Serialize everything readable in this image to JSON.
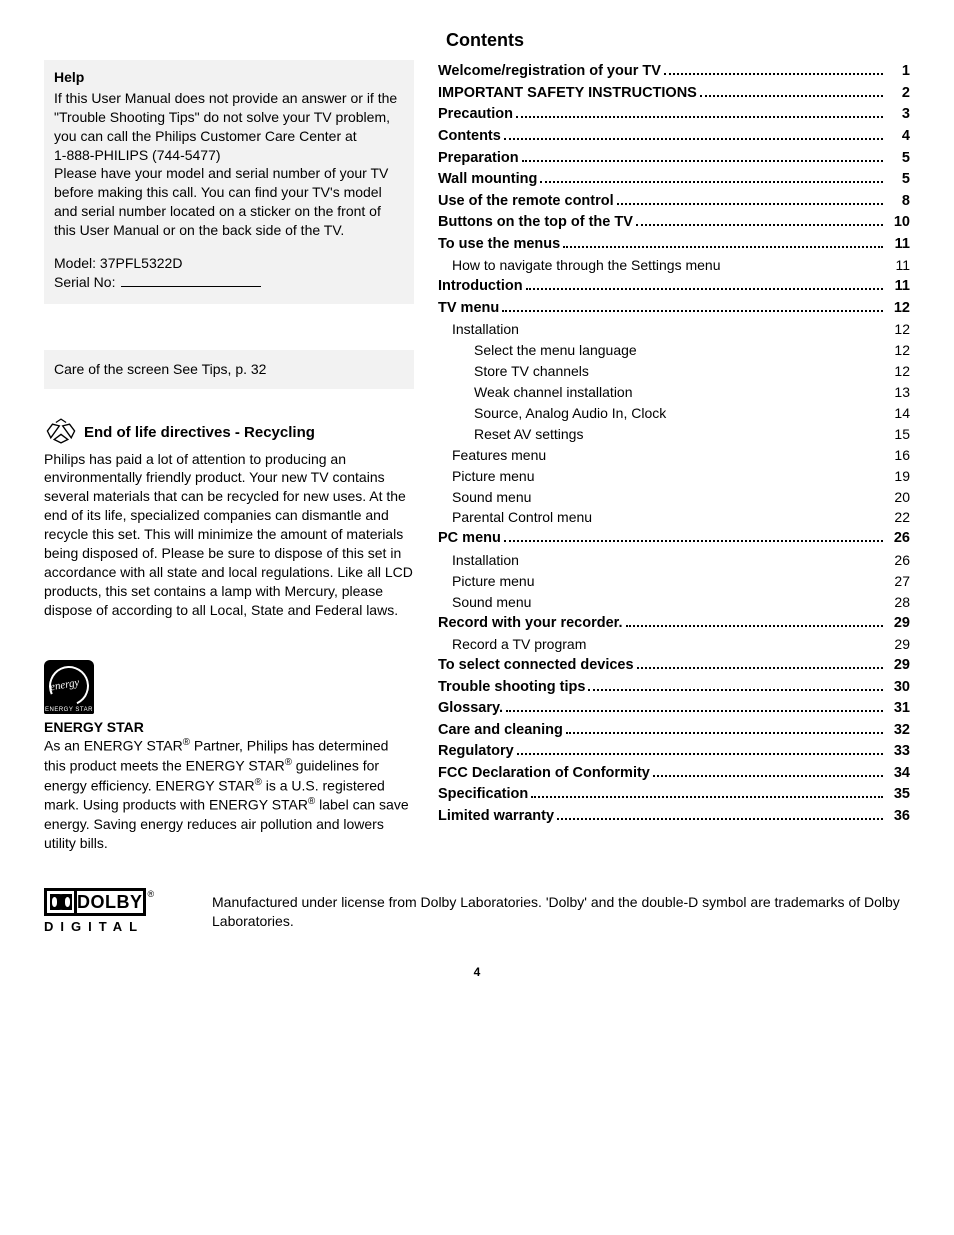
{
  "contents_title": "Contents",
  "help": {
    "title": "Help",
    "body1": "If this User Manual does not provide an answer or if the \"Trouble Shooting Tips\" do not solve your TV problem, you can call the Philips Customer Care Center at",
    "phone": "1-888-PHILIPS (744-5477)",
    "body2": "Please have your model and serial number of your TV before making this call. You can find your TV's model and serial number located on a sticker on the front of this User Manual or on the back side of the TV.",
    "model_label": "Model:",
    "model_value": "37PFL5322D",
    "serial_label": "Serial No:"
  },
  "tip_box": "Care of the screen See Tips, p. 32",
  "recycling": {
    "title": "End of life directives - Recycling",
    "body": "Philips has paid a lot of attention to producing an environmentally friendly product. Your new TV contains several materials that can be recycled for new uses. At the end of its life, specialized companies can dismantle and recycle this set. This will minimize the amount of materials being disposed of.  Please be sure to dispose of this set in accordance with all state and local regulations. Like all LCD products, this set contains a lamp with Mercury, please dispose of according to all Local, State and Federal laws."
  },
  "energy_star": {
    "logo_script": "energy",
    "logo_bar": "ENERGY STAR",
    "title": "ENERGY STAR",
    "body_html": "As an ENERGY STAR<sup>®</sup> Partner, Philips has determined this product meets the ENERGY STAR<sup>®</sup> guidelines for energy efficiency. ENERGY STAR<sup>®</sup> is a U.S. registered mark. Using products with ENERGY STAR<sup>®</sup> label can save energy. Saving energy reduces air pollution and lowers utility bills."
  },
  "toc": [
    {
      "label": "Welcome/registration of your TV",
      "page": "1",
      "level": 0,
      "dotted": true
    },
    {
      "label": "IMPORTANT SAFETY INSTRUCTIONS",
      "page": "2",
      "level": 0,
      "dotted": true
    },
    {
      "label": "Precaution",
      "page": "3",
      "level": 0,
      "dotted": true
    },
    {
      "label": "Contents",
      "page": "4",
      "level": 0,
      "dotted": true
    },
    {
      "label": "Preparation",
      "page": "5",
      "level": 0,
      "dotted": true
    },
    {
      "label": "Wall mounting",
      "page": "5",
      "level": 0,
      "dotted": true
    },
    {
      "label": "Use of the remote control",
      "page": "8",
      "level": 0,
      "dotted": true
    },
    {
      "label": "Buttons on the top of the TV",
      "page": "10",
      "level": 0,
      "dotted": true
    },
    {
      "label": "To use the menus",
      "page": "11",
      "level": 0,
      "dotted": true
    },
    {
      "label": "How to navigate through the Settings menu",
      "page": "11",
      "level": 1,
      "dotted": false
    },
    {
      "label": "Introduction",
      "page": "11",
      "level": 0,
      "dotted": true
    },
    {
      "label": "TV menu",
      "page": "12",
      "level": 0,
      "dotted": true
    },
    {
      "label": "Installation",
      "page": "12",
      "level": 1,
      "dotted": false
    },
    {
      "label": "Select the menu language",
      "page": "12",
      "level": 2,
      "dotted": false
    },
    {
      "label": "Store TV channels",
      "page": "12",
      "level": 2,
      "dotted": false
    },
    {
      "label": "Weak channel installation",
      "page": "13",
      "level": 2,
      "dotted": false
    },
    {
      "label": "Source, Analog Audio In, Clock",
      "page": "14",
      "level": 2,
      "dotted": false
    },
    {
      "label": "Reset AV settings",
      "page": "15",
      "level": 2,
      "dotted": false
    },
    {
      "label": "Features menu",
      "page": "16",
      "level": 1,
      "dotted": false
    },
    {
      "label": "Picture menu",
      "page": "19",
      "level": 1,
      "dotted": false
    },
    {
      "label": "Sound menu",
      "page": "20",
      "level": 1,
      "dotted": false
    },
    {
      "label": "Parental Control menu",
      "page": "22",
      "level": 1,
      "dotted": false
    },
    {
      "label": "PC menu",
      "page": "26",
      "level": 0,
      "dotted": true
    },
    {
      "label": "Installation",
      "page": "26",
      "level": 1,
      "dotted": false
    },
    {
      "label": "Picture menu",
      "page": "27",
      "level": 1,
      "dotted": false
    },
    {
      "label": "Sound menu",
      "page": "28",
      "level": 1,
      "dotted": false
    },
    {
      "label": "Record with your recorder.",
      "page": "29",
      "level": 0,
      "dotted": true
    },
    {
      "label": "Record a TV program",
      "page": "29",
      "level": 1,
      "dotted": false
    },
    {
      "label": "To select connected devices",
      "page": "29",
      "level": 0,
      "dotted": true
    },
    {
      "label": "Trouble shooting tips",
      "page": "30",
      "level": 0,
      "dotted": true
    },
    {
      "label": "Glossary.",
      "page": "31",
      "level": 0,
      "dotted": true
    },
    {
      "label": "Care and cleaning",
      "page": "32",
      "level": 0,
      "dotted": true
    },
    {
      "label": "Regulatory",
      "page": "33",
      "level": 0,
      "dotted": true
    },
    {
      "label": "FCC Declaration of Conformity",
      "page": "34",
      "level": 0,
      "dotted": true
    },
    {
      "label": "Specification",
      "page": "35",
      "level": 0,
      "dotted": true
    },
    {
      "label": "Limited warranty",
      "page": "36",
      "level": 0,
      "dotted": true
    }
  ],
  "dolby": {
    "name": "DOLBY",
    "digital": "DIGITAL",
    "reg": "®",
    "note": "Manufactured under license from Dolby Laboratories. 'Dolby' and the double-D symbol are trademarks of Dolby Laboratories."
  },
  "page_number": "4",
  "colors": {
    "bg": "#ffffff",
    "text": "#000000",
    "box_bg": "#f2f2f2"
  }
}
